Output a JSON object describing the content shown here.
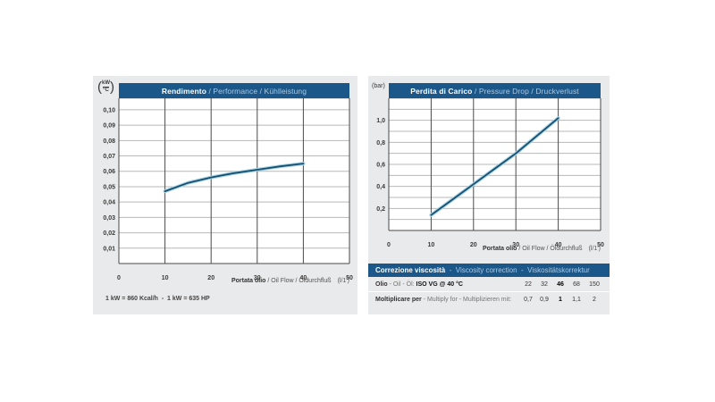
{
  "colors": {
    "header_blue": "#1c578a",
    "header_light_text": "#aac9e3",
    "panel_bg": "#e9eaeb",
    "grid_dark": "#4a4a4a",
    "grid_light": "#b8b8b8",
    "curve": "#15506e",
    "curve_halo": "#a5d0e4",
    "text_dark": "#3a3a3a"
  },
  "chart_data": [
    {
      "id": "performance",
      "type": "line",
      "title_primary": "Rendimento",
      "title_secondary": " / Performance / Kühlleistung",
      "y_unit_top": "kW",
      "y_unit_bottom": "°C",
      "xlabel_primary": "Portata olio",
      "xlabel_secondary": " / Oil Flow / Öldurchfluß",
      "xlabel_unit": "(l/1')",
      "xlim": [
        0,
        50
      ],
      "ylim": [
        0,
        0.1075
      ],
      "xgrid": [
        10,
        20,
        30,
        40
      ],
      "xticks": [
        [
          0,
          "0"
        ],
        [
          10,
          "10"
        ],
        [
          20,
          "20"
        ],
        [
          30,
          "30"
        ],
        [
          40,
          "40"
        ],
        [
          50,
          "50"
        ]
      ],
      "ygrid": [
        0.01,
        0.02,
        0.03,
        0.04,
        0.05,
        0.06,
        0.07,
        0.08,
        0.09,
        0.1
      ],
      "yticks": [
        [
          0.01,
          "0,01"
        ],
        [
          0.02,
          "0,02"
        ],
        [
          0.03,
          "0,03"
        ],
        [
          0.04,
          "0,04"
        ],
        [
          0.05,
          "0,05"
        ],
        [
          0.06,
          "0,06"
        ],
        [
          0.07,
          "0,07"
        ],
        [
          0.08,
          "0,08"
        ],
        [
          0.09,
          "0,09"
        ],
        [
          0.1,
          "0,10"
        ]
      ],
      "series": [
        {
          "name": "cooling-capacity",
          "x": [
            10,
            15,
            20,
            25,
            30,
            35,
            40
          ],
          "y": [
            0.047,
            0.0525,
            0.056,
            0.0588,
            0.061,
            0.0632,
            0.065
          ]
        }
      ],
      "footnote": "1 kW = 860 Kcal/h  -  1 kW = 635 HP"
    },
    {
      "id": "pressure-drop",
      "type": "line",
      "title_primary": "Perdita di Carico",
      "title_secondary": " / Pressure Drop / Druckverlust",
      "y_unit": "(bar)",
      "xlabel_primary": "Portata olio",
      "xlabel_secondary": " / Oil Flow / Öldurchfluß",
      "xlabel_unit": "(l/1')",
      "xlim": [
        0,
        50
      ],
      "ylim": [
        0,
        1.2
      ],
      "xgrid": [
        10,
        20,
        30,
        40
      ],
      "xticks": [
        [
          0,
          "0"
        ],
        [
          10,
          "10"
        ],
        [
          20,
          "20"
        ],
        [
          30,
          "30"
        ],
        [
          40,
          "40"
        ],
        [
          50,
          "50"
        ]
      ],
      "ygrid": [
        0.1,
        0.2,
        0.3,
        0.4,
        0.5,
        0.6,
        0.7,
        0.8,
        0.9,
        1.0,
        1.1
      ],
      "yticks": [
        [
          0.2,
          "0,2"
        ],
        [
          0.4,
          "0,4"
        ],
        [
          0.6,
          "0,6"
        ],
        [
          0.8,
          "0,8"
        ],
        [
          1.0,
          "1,0"
        ]
      ],
      "series": [
        {
          "name": "pressure-drop",
          "x": [
            10,
            15,
            20,
            25,
            30,
            35,
            40
          ],
          "y": [
            0.14,
            0.28,
            0.42,
            0.56,
            0.7,
            0.86,
            1.02
          ]
        }
      ]
    }
  ],
  "viscosity_table": {
    "header_primary": "Correzione viscosità",
    "header_secondary": "  -  Viscosity correction  -  Viskositätskorrektur",
    "row1_label_primary": "Olio",
    "row1_label_secondary": " - Oil - Öl: ",
    "row1_label_bold": "ISO VG @ 40 °C",
    "row1_values": [
      "22",
      "32",
      "46",
      "68",
      "150"
    ],
    "row1_bold_index": 2,
    "row2_label_primary": "Moltiplicare per",
    "row2_label_secondary": " - Multiply for - Multiplizieren mit:",
    "row2_values": [
      "0,7",
      "0,9",
      "1",
      "1,1",
      "2"
    ],
    "row2_bold_index": 2
  }
}
